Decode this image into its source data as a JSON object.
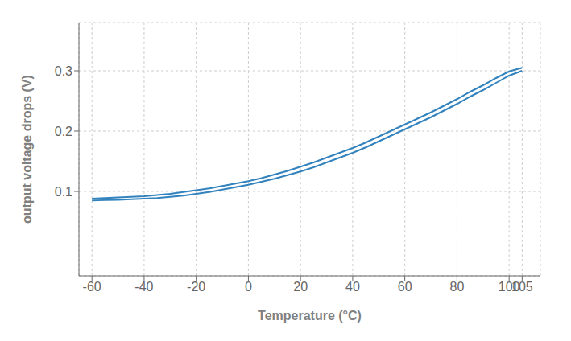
{
  "chart_data": {
    "type": "line",
    "xlabel": "Temperature (°C)",
    "ylabel": "output voltage drops (V)",
    "x": [
      -60,
      -55,
      -50,
      -45,
      -40,
      -35,
      -30,
      -25,
      -20,
      -15,
      -10,
      -5,
      0,
      5,
      10,
      15,
      20,
      25,
      30,
      35,
      40,
      45,
      50,
      55,
      60,
      65,
      70,
      75,
      80,
      85,
      90,
      95,
      100,
      105
    ],
    "series": [
      {
        "values": [
          0.085,
          0.0855,
          0.086,
          0.087,
          0.088,
          0.089,
          0.091,
          0.093,
          0.096,
          0.099,
          0.103,
          0.107,
          0.111,
          0.116,
          0.121,
          0.127,
          0.133,
          0.14,
          0.148,
          0.156,
          0.164,
          0.173,
          0.183,
          0.193,
          0.203,
          0.213,
          0.223,
          0.234,
          0.245,
          0.257,
          0.268,
          0.28,
          0.292,
          0.3
        ]
      },
      {
        "values": [
          0.088,
          0.089,
          0.09,
          0.091,
          0.092,
          0.094,
          0.096,
          0.099,
          0.102,
          0.105,
          0.109,
          0.113,
          0.117,
          0.122,
          0.128,
          0.134,
          0.141,
          0.148,
          0.156,
          0.164,
          0.172,
          0.181,
          0.191,
          0.201,
          0.211,
          0.221,
          0.231,
          0.242,
          0.253,
          0.265,
          0.276,
          0.288,
          0.299,
          0.305
        ]
      }
    ],
    "xlim": [
      -65,
      112
    ],
    "ylim": [
      -0.04,
      0.38
    ],
    "xticks": [
      -60,
      -40,
      -20,
      0,
      20,
      40,
      60,
      80,
      100,
      105
    ],
    "yticks": [
      0.1,
      0.2,
      0.3
    ],
    "grid": true
  }
}
